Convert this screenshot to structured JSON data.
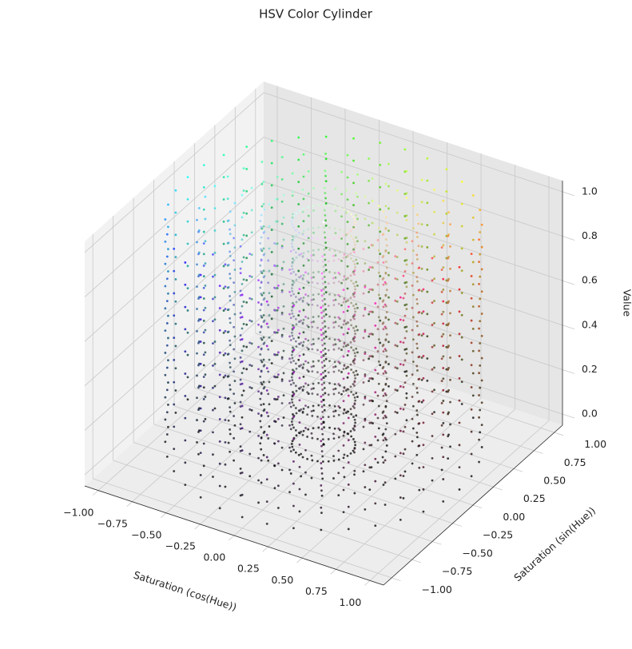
{
  "chart_data": {
    "type": "scatter3d",
    "title": "HSV Color Cylinder",
    "xlabel": "Saturation (cos(Hue))",
    "ylabel": "Saturation (sin(Hue))",
    "zlabel": "Value",
    "hues": [
      0,
      10,
      20,
      30,
      40,
      50,
      60,
      70,
      80,
      90,
      100,
      110,
      120,
      130,
      140,
      150,
      160,
      170,
      180,
      190,
      200,
      210,
      220,
      230,
      240,
      250,
      260,
      270,
      280,
      290,
      300,
      310,
      320,
      330,
      340,
      350
    ],
    "saturations": [
      0,
      0.2,
      0.4,
      0.6,
      0.8,
      1.0
    ],
    "values": [
      0,
      0.1,
      0.2,
      0.3,
      0.4,
      0.5,
      0.6,
      0.7,
      0.8,
      0.9,
      1.0
    ],
    "xlim": [
      -1.1,
      1.1
    ],
    "ylim": [
      -1.1,
      1.1
    ],
    "zlim": [
      -0.05,
      1.05
    ],
    "xticks": [
      {
        "value": -1,
        "label": "−1.00"
      },
      {
        "value": -0.75,
        "label": "−0.75"
      },
      {
        "value": -0.5,
        "label": "−0.50"
      },
      {
        "value": -0.25,
        "label": "−0.25"
      },
      {
        "value": 0,
        "label": "0.00"
      },
      {
        "value": 0.25,
        "label": "0.25"
      },
      {
        "value": 0.5,
        "label": "0.50"
      },
      {
        "value": 0.75,
        "label": "0.75"
      },
      {
        "value": 1,
        "label": "1.00"
      }
    ],
    "yticks": [
      {
        "value": -1,
        "label": "−1.00"
      },
      {
        "value": -0.75,
        "label": "−0.75"
      },
      {
        "value": -0.5,
        "label": "−0.50"
      },
      {
        "value": -0.25,
        "label": "−0.25"
      },
      {
        "value": 0,
        "label": "0.00"
      },
      {
        "value": 0.25,
        "label": "0.25"
      },
      {
        "value": 0.5,
        "label": "0.50"
      },
      {
        "value": 0.75,
        "label": "0.75"
      },
      {
        "value": 1,
        "label": "1.00"
      }
    ],
    "zticks": [
      {
        "value": 0,
        "label": "0.0"
      },
      {
        "value": 0.2,
        "label": "0.2"
      },
      {
        "value": 0.4,
        "label": "0.4"
      },
      {
        "value": 0.6,
        "label": "0.6"
      },
      {
        "value": 0.8,
        "label": "0.8"
      },
      {
        "value": 1,
        "label": "1.0"
      }
    ],
    "grid": true
  }
}
